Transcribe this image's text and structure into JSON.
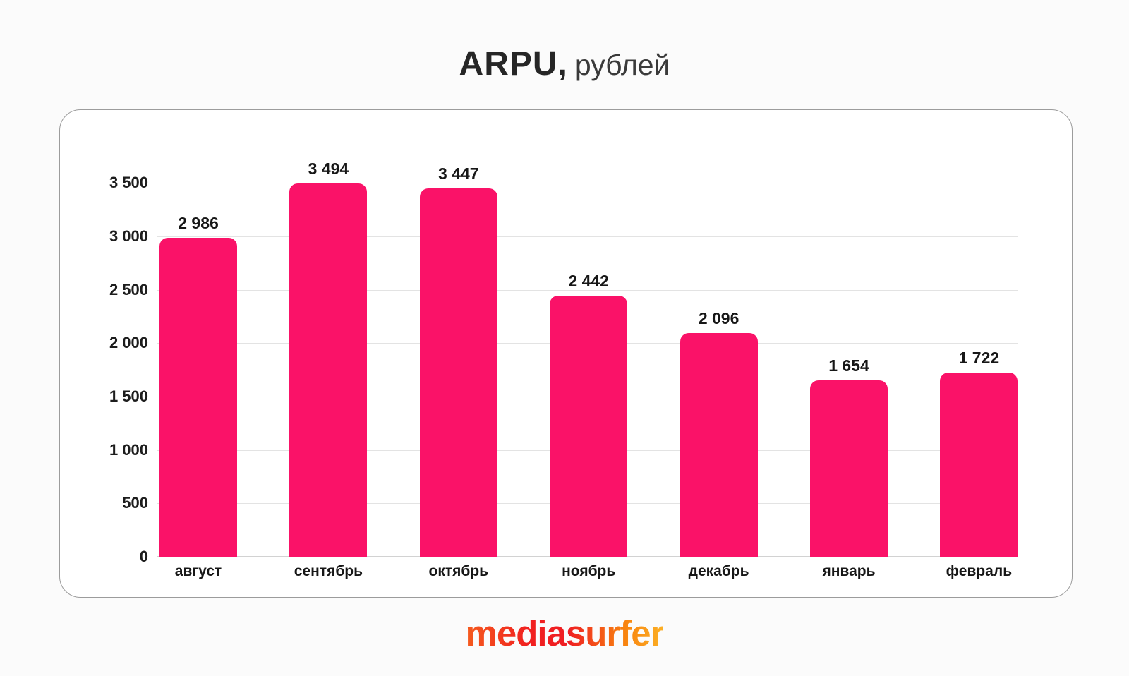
{
  "page": {
    "title_main": "ARPU,",
    "title_sub": "рублей",
    "brand": "mediasurfer"
  },
  "colors": {
    "bar": "#fa1268",
    "grid": "#e3e3e3",
    "baseline": "#d2d2d2",
    "card_border": "#9c9c9c",
    "text": "#1d1d1d",
    "logo_gradient_start": "#f55b1e",
    "logo_gradient_mid": "#ef1e22",
    "logo_gradient_end": "#fcb025"
  },
  "chart_data": {
    "type": "bar",
    "title": "ARPU, рублей",
    "categories": [
      "август",
      "сентябрь",
      "октябрь",
      "ноябрь",
      "декабрь",
      "январь",
      "февраль"
    ],
    "values": [
      2986,
      3494,
      3447,
      2442,
      2096,
      1654,
      1722
    ],
    "value_labels": [
      "2 986",
      "3 494",
      "3 447",
      "2 442",
      "2 096",
      "1 654",
      "1 722"
    ],
    "y_ticks": [
      0,
      500,
      1000,
      1500,
      2000,
      2500,
      3000,
      3500
    ],
    "y_tick_labels": [
      "0",
      "500",
      "1 000",
      "1 500",
      "2 000",
      "2 500",
      "3 000",
      "3 500"
    ],
    "ylim": [
      0,
      3500
    ],
    "grid": true,
    "legend": false,
    "xlabel": "",
    "ylabel": ""
  }
}
